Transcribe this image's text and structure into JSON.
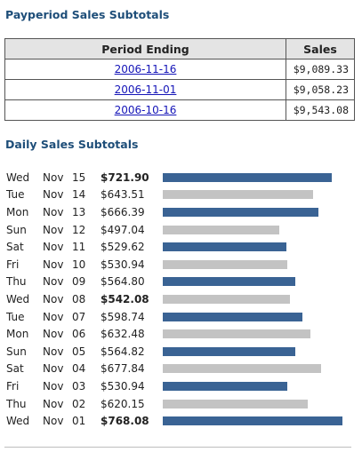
{
  "payperiod": {
    "title": "Payperiod Sales Subtotals",
    "headers": {
      "period": "Period Ending",
      "sales": "Sales"
    },
    "rows": [
      {
        "period": "2006-11-16",
        "sales": "$9,089.33"
      },
      {
        "period": "2006-11-01",
        "sales": "$9,058.23"
      },
      {
        "period": "2006-10-16",
        "sales": "$9,543.08"
      }
    ]
  },
  "daily": {
    "title": "Daily Sales Subtotals",
    "colors": {
      "weekday": "#3a6394",
      "weekend": "#c3c3c3"
    },
    "rows": [
      {
        "dow": "Wed",
        "mon": "Nov",
        "day": "15",
        "amount": "$721.90",
        "value": 721.9,
        "bold": true,
        "weekend": false
      },
      {
        "dow": "Tue",
        "mon": "Nov",
        "day": "14",
        "amount": "$643.51",
        "value": 643.51,
        "bold": false,
        "weekend": true
      },
      {
        "dow": "Mon",
        "mon": "Nov",
        "day": "13",
        "amount": "$666.39",
        "value": 666.39,
        "bold": false,
        "weekend": false
      },
      {
        "dow": "Sun",
        "mon": "Nov",
        "day": "12",
        "amount": "$497.04",
        "value": 497.04,
        "bold": false,
        "weekend": true
      },
      {
        "dow": "Sat",
        "mon": "Nov",
        "day": "11",
        "amount": "$529.62",
        "value": 529.62,
        "bold": false,
        "weekend": false
      },
      {
        "dow": "Fri",
        "mon": "Nov",
        "day": "10",
        "amount": "$530.94",
        "value": 530.94,
        "bold": false,
        "weekend": true
      },
      {
        "dow": "Thu",
        "mon": "Nov",
        "day": "09",
        "amount": "$564.80",
        "value": 564.8,
        "bold": false,
        "weekend": false
      },
      {
        "dow": "Wed",
        "mon": "Nov",
        "day": "08",
        "amount": "$542.08",
        "value": 542.08,
        "bold": true,
        "weekend": true
      },
      {
        "dow": "Tue",
        "mon": "Nov",
        "day": "07",
        "amount": "$598.74",
        "value": 598.74,
        "bold": false,
        "weekend": false
      },
      {
        "dow": "Mon",
        "mon": "Nov",
        "day": "06",
        "amount": "$632.48",
        "value": 632.48,
        "bold": false,
        "weekend": true
      },
      {
        "dow": "Sun",
        "mon": "Nov",
        "day": "05",
        "amount": "$564.82",
        "value": 564.82,
        "bold": false,
        "weekend": false
      },
      {
        "dow": "Sat",
        "mon": "Nov",
        "day": "04",
        "amount": "$677.84",
        "value": 677.84,
        "bold": false,
        "weekend": true
      },
      {
        "dow": "Fri",
        "mon": "Nov",
        "day": "03",
        "amount": "$530.94",
        "value": 530.94,
        "bold": false,
        "weekend": false
      },
      {
        "dow": "Thu",
        "mon": "Nov",
        "day": "02",
        "amount": "$620.15",
        "value": 620.15,
        "bold": false,
        "weekend": true
      },
      {
        "dow": "Wed",
        "mon": "Nov",
        "day": "01",
        "amount": "$768.08",
        "value": 768.08,
        "bold": true,
        "weekend": false
      }
    ]
  }
}
